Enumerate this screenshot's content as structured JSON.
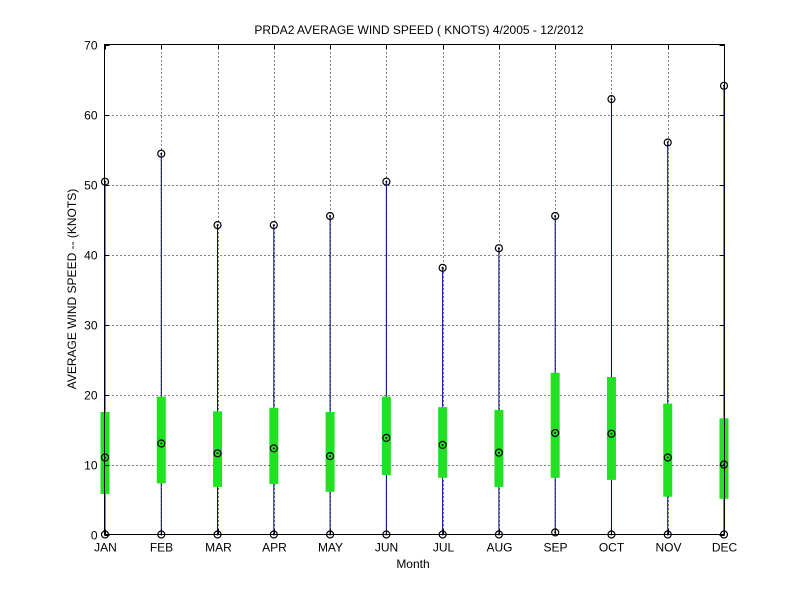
{
  "chart_data": {
    "type": "boxplot",
    "title": "PRDA2  AVERAGE WIND SPEED ( KNOTS) 4/2005 - 12/2012",
    "xlabel": "Month",
    "ylabel": "AVERAGE WIND SPEED -- (KNOTS)",
    "ylim": [
      0,
      70
    ],
    "yticks": [
      0,
      10,
      20,
      30,
      40,
      50,
      60,
      70
    ],
    "grid": true,
    "categories": [
      "JAN",
      "FEB",
      "MAR",
      "APR",
      "MAY",
      "JUN",
      "JUL",
      "AUG",
      "SEP",
      "OCT",
      "NOV",
      "DEC"
    ],
    "min": [
      0,
      0,
      0,
      0,
      0,
      0,
      0,
      0,
      0.3,
      0,
      0,
      0
    ],
    "q1": [
      5.8,
      7.3,
      6.8,
      7.2,
      6.1,
      8.5,
      8.1,
      6.8,
      8.1,
      7.8,
      5.4,
      5.1
    ],
    "median": [
      11.0,
      13.0,
      11.6,
      12.3,
      11.2,
      13.8,
      12.8,
      11.7,
      14.5,
      14.4,
      11.0,
      10.0
    ],
    "q3": [
      17.5,
      19.7,
      17.6,
      18.1,
      17.5,
      19.7,
      18.2,
      17.8,
      23.1,
      22.5,
      18.7,
      16.6
    ],
    "max": [
      50.4,
      54.4,
      44.2,
      44.2,
      45.5,
      50.4,
      38.1,
      40.9,
      45.5,
      62.2,
      56.0,
      64.1
    ],
    "colors": {
      "box": "#22e022",
      "whisker": "#000080",
      "marker": "#000000",
      "grid": "#000000"
    }
  }
}
